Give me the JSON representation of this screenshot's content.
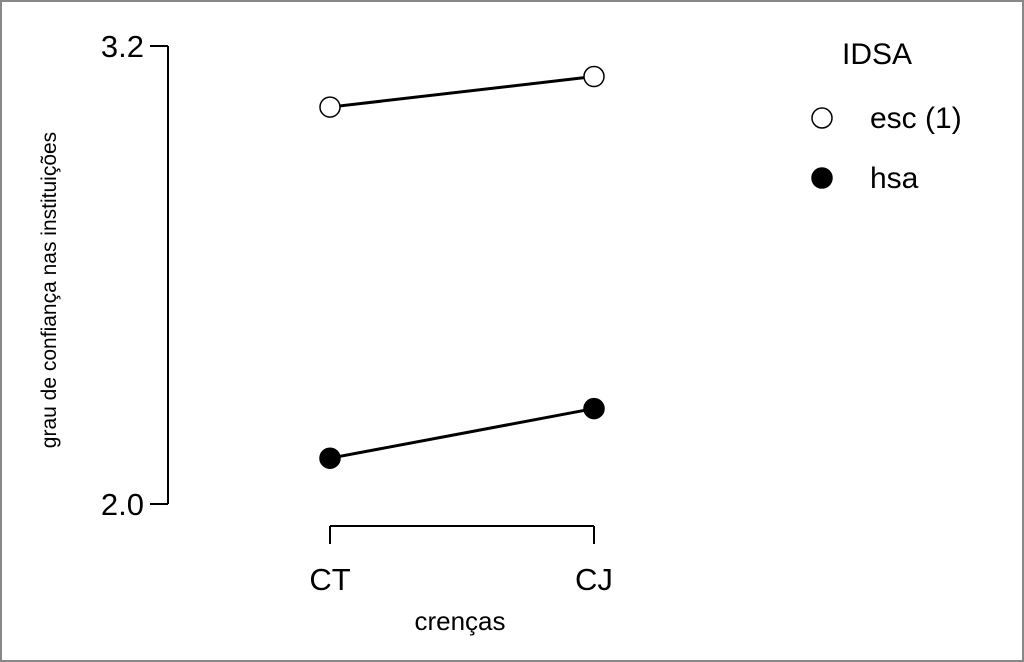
{
  "chart_data": {
    "type": "line",
    "xlabel": "crenças",
    "ylabel": "grau de confiança nas instituições",
    "categories": [
      "CT",
      "CJ"
    ],
    "y_ticks": [
      "3.2",
      "2.0"
    ],
    "ylim": [
      2.0,
      3.2
    ],
    "legend": {
      "title": "IDSA",
      "placement": "top-right"
    },
    "series": [
      {
        "name": "esc (1)",
        "marker": "open-circle",
        "values": [
          3.04,
          3.12
        ]
      },
      {
        "name": "hsa",
        "marker": "filled-circle",
        "values": [
          2.12,
          2.25
        ]
      }
    ],
    "grid": false
  },
  "colors": {
    "line": "#000000",
    "open_fill": "#ffffff",
    "filled": "#000000",
    "border": "#888888"
  }
}
